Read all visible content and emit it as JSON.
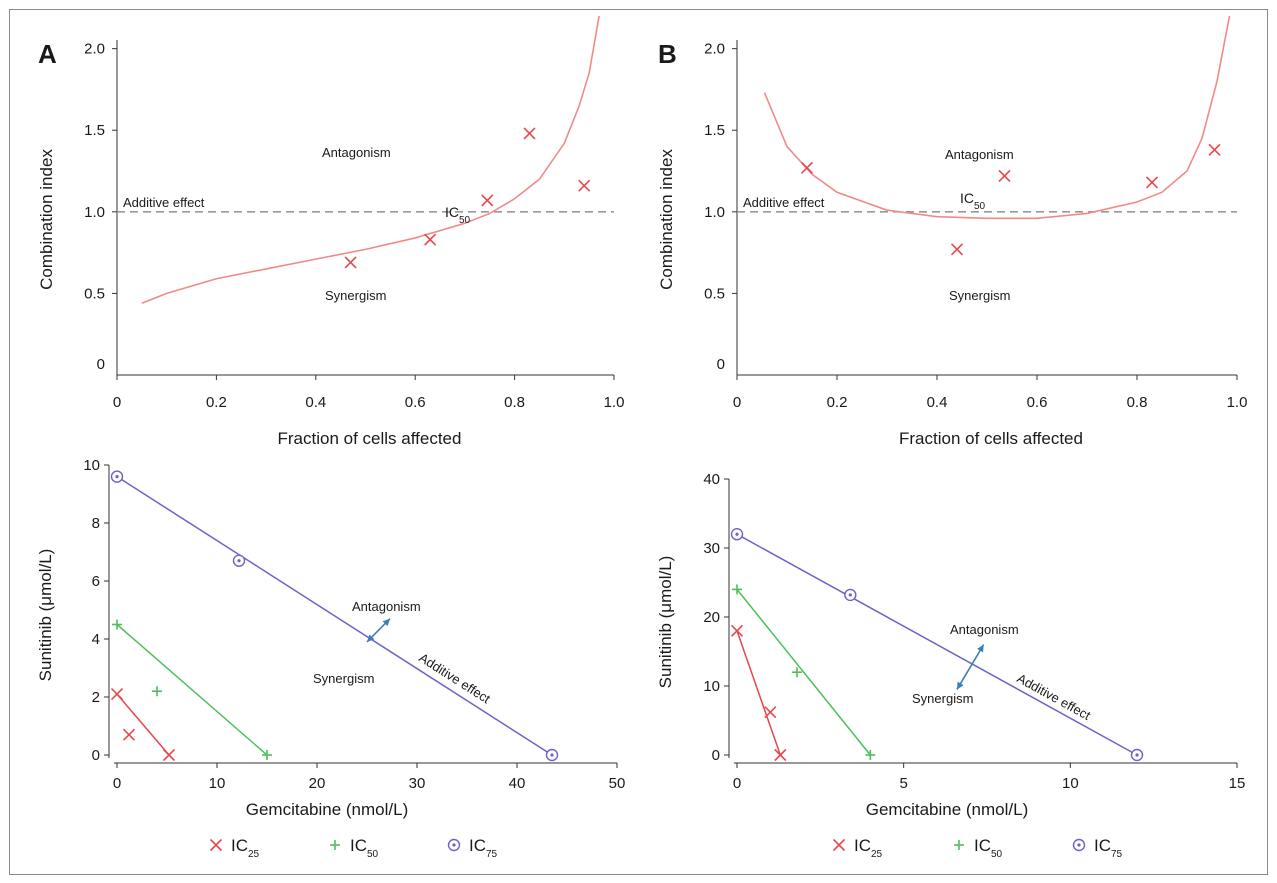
{
  "panel_labels": [
    "A",
    "B"
  ],
  "legend": [
    {
      "key": "ic25",
      "label": "IC",
      "sub": "25",
      "color": "#e8474c"
    },
    {
      "key": "ic50",
      "label": "IC",
      "sub": "50",
      "color": "#4cbf5a"
    },
    {
      "key": "ic75",
      "label": "IC",
      "sub": "75",
      "color": "#6a64c8"
    }
  ],
  "chart_data": [
    {
      "panel": "A",
      "type": "scatter",
      "xlabel": "Fraction of cells affected",
      "ylabel": "Combination index",
      "xlim": [
        0,
        1.0
      ],
      "ylim": [
        0,
        2.2
      ],
      "xticks": [
        "0",
        "0.2",
        "0.4",
        "0.6",
        "0.8",
        "1.0"
      ],
      "yticks": [
        "0",
        "0.5",
        "1.0",
        "1.5",
        "2.0"
      ],
      "grid": false,
      "reference_line": {
        "y": 1.0,
        "label": "Additive effect",
        "style": "dashed"
      },
      "region_labels": {
        "upper": "Antagonism",
        "lower": "Synergism"
      },
      "point_annotation": {
        "text": "IC",
        "sub": "50"
      },
      "series": [
        {
          "values": [
            [
              0.47,
              0.69
            ],
            [
              0.63,
              0.83
            ],
            [
              0.745,
              1.07
            ],
            [
              0.83,
              1.48
            ],
            [
              0.94,
              1.16
            ]
          ],
          "color": "#e8474c",
          "marker": "x"
        }
      ],
      "fit_curve": {
        "color": "#f08a8a",
        "points": [
          [
            0.05,
            0.44
          ],
          [
            0.1,
            0.5
          ],
          [
            0.2,
            0.59
          ],
          [
            0.3,
            0.65
          ],
          [
            0.4,
            0.71
          ],
          [
            0.5,
            0.77
          ],
          [
            0.6,
            0.84
          ],
          [
            0.7,
            0.93
          ],
          [
            0.75,
            0.99
          ],
          [
            0.8,
            1.08
          ],
          [
            0.85,
            1.2
          ],
          [
            0.9,
            1.42
          ],
          [
            0.93,
            1.65
          ],
          [
            0.95,
            1.85
          ],
          [
            0.97,
            2.2
          ]
        ]
      }
    },
    {
      "panel": "B",
      "type": "scatter",
      "xlabel": "Fraction of cells affected",
      "ylabel": "Combination index",
      "xlim": [
        0,
        1.0
      ],
      "ylim": [
        0,
        2.2
      ],
      "xticks": [
        "0",
        "0.2",
        "0.4",
        "0.6",
        "0.8",
        "1.0"
      ],
      "yticks": [
        "0",
        "0.5",
        "1.0",
        "1.5",
        "2.0"
      ],
      "grid": false,
      "reference_line": {
        "y": 1.0,
        "label": "Additive effect",
        "style": "dashed"
      },
      "region_labels": {
        "upper": "Antagonism",
        "lower": "Synergism"
      },
      "point_annotation": {
        "text": "IC",
        "sub": "50"
      },
      "series": [
        {
          "values": [
            [
              0.14,
              1.27
            ],
            [
              0.44,
              0.77
            ],
            [
              0.535,
              1.22
            ],
            [
              0.83,
              1.18
            ],
            [
              0.955,
              1.38
            ]
          ],
          "color": "#e8474c",
          "marker": "x"
        }
      ],
      "fit_curve": {
        "color": "#f08a8a",
        "points": [
          [
            0.055,
            1.73
          ],
          [
            0.1,
            1.4
          ],
          [
            0.15,
            1.23
          ],
          [
            0.2,
            1.12
          ],
          [
            0.3,
            1.01
          ],
          [
            0.4,
            0.97
          ],
          [
            0.5,
            0.96
          ],
          [
            0.6,
            0.96
          ],
          [
            0.7,
            0.99
          ],
          [
            0.8,
            1.06
          ],
          [
            0.85,
            1.12
          ],
          [
            0.9,
            1.25
          ],
          [
            0.93,
            1.45
          ],
          [
            0.96,
            1.8
          ],
          [
            0.985,
            2.2
          ]
        ]
      }
    },
    {
      "panel": "A",
      "type": "line",
      "xlabel": "Gemcitabine (nmol/L)",
      "ylabel": "Sunitinib (μmol/L)",
      "xlim": [
        0,
        50
      ],
      "ylim": [
        0,
        10
      ],
      "xticks": [
        "0",
        "10",
        "20",
        "30",
        "40",
        "50"
      ],
      "yticks": [
        "0",
        "2",
        "4",
        "6",
        "8",
        "10"
      ],
      "grid": false,
      "line_label": "Additive effect",
      "arrow_labels": {
        "upper": "Antagonism",
        "lower": "Synergism"
      },
      "arrow": {
        "from": [
          25,
          3.9
        ],
        "to": [
          27.3,
          4.7
        ]
      },
      "series": [
        {
          "name": "IC25",
          "color": "#e8474c",
          "marker": "x",
          "isobole": [
            [
              0,
              2.1
            ],
            [
              5.2,
              0
            ]
          ],
          "values": [
            [
              0,
              2.1
            ],
            [
              1.2,
              0.7
            ],
            [
              5.2,
              0
            ]
          ]
        },
        {
          "name": "IC50",
          "color": "#4cbf5a",
          "marker": "+",
          "isobole": [
            [
              0,
              4.5
            ],
            [
              15,
              0
            ]
          ],
          "values": [
            [
              0,
              4.5
            ],
            [
              4,
              2.2
            ],
            [
              15,
              0
            ]
          ]
        },
        {
          "name": "IC75",
          "color": "#6a64c8",
          "marker": "o",
          "isobole": [
            [
              0,
              9.6
            ],
            [
              43.5,
              0
            ]
          ],
          "values": [
            [
              0,
              9.6
            ],
            [
              12.2,
              6.7
            ],
            [
              43.5,
              0
            ]
          ]
        }
      ]
    },
    {
      "panel": "B",
      "type": "line",
      "xlabel": "Gemcitabine (nmol/L)",
      "ylabel": "Sunitinib (μmol/L)",
      "xlim": [
        0,
        15
      ],
      "ylim": [
        0,
        40
      ],
      "xticks": [
        "0",
        "5",
        "10",
        "15"
      ],
      "yticks": [
        "0",
        "10",
        "20",
        "30",
        "40"
      ],
      "grid": false,
      "line_label": "Additive effect",
      "arrow_labels": {
        "upper": "Antagonism",
        "lower": "Synergism"
      },
      "arrow": {
        "from": [
          6.6,
          9.5
        ],
        "to": [
          7.4,
          16
        ]
      },
      "series": [
        {
          "name": "IC25",
          "color": "#e8474c",
          "marker": "x",
          "isobole": [
            [
              0,
              18
            ],
            [
              1.3,
              0
            ]
          ],
          "values": [
            [
              0,
              18
            ],
            [
              1.0,
              6.2
            ],
            [
              1.3,
              0
            ]
          ]
        },
        {
          "name": "IC50",
          "color": "#4cbf5a",
          "marker": "+",
          "isobole": [
            [
              0,
              24
            ],
            [
              4,
              0
            ]
          ],
          "values": [
            [
              0,
              24
            ],
            [
              1.8,
              12
            ],
            [
              4,
              0
            ]
          ]
        },
        {
          "name": "IC75",
          "color": "#6a64c8",
          "marker": "o",
          "isobole": [
            [
              0,
              32
            ],
            [
              12,
              0
            ]
          ],
          "values": [
            [
              0,
              32
            ],
            [
              3.4,
              23.2
            ],
            [
              12,
              0
            ]
          ]
        }
      ]
    }
  ]
}
